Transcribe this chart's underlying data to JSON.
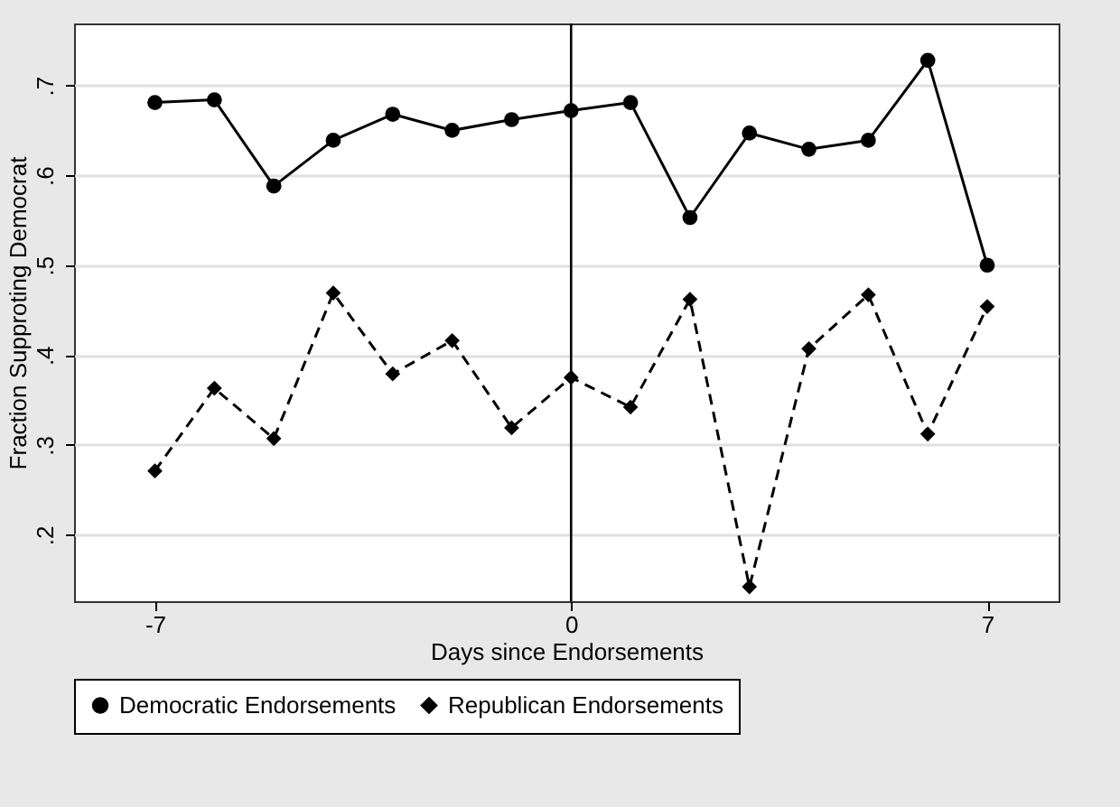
{
  "chart_data": {
    "type": "line",
    "xlabel": "Days since Endorsements",
    "ylabel": "Fraction Supproting Democrat",
    "x": [
      -7,
      -6,
      -5,
      -4,
      -3,
      -2,
      -1,
      0,
      1,
      2,
      3,
      4,
      5,
      6,
      7
    ],
    "xlim": [
      -8.36,
      8.2
    ],
    "xticks": [
      -7,
      0,
      7
    ],
    "ylim": [
      0.126,
      0.769
    ],
    "yticks": [
      {
        "value": 0.2,
        "label": ".2"
      },
      {
        "value": 0.3,
        "label": ".3"
      },
      {
        "value": 0.4,
        "label": ".4"
      },
      {
        "value": 0.5,
        "label": ".5"
      },
      {
        "value": 0.6,
        "label": ".6"
      },
      {
        "value": 0.7,
        "label": ".7"
      }
    ],
    "grid": "y",
    "legend": "bottom",
    "ref_lines": [
      {
        "axis": "x",
        "value": 0,
        "color": "#000000"
      }
    ],
    "series": [
      {
        "name": "Democratic Endorsements",
        "color": "#000000",
        "marker": "circle",
        "line_style": "solid",
        "values": [
          0.681,
          0.684,
          0.588,
          0.639,
          0.668,
          0.65,
          0.662,
          0.672,
          0.681,
          0.553,
          0.647,
          0.629,
          0.639,
          0.728,
          0.5
        ]
      },
      {
        "name": "Republican Endorsements",
        "color": "#000000",
        "marker": "diamond",
        "line_style": "dashed",
        "values": [
          0.271,
          0.363,
          0.307,
          0.469,
          0.379,
          0.416,
          0.319,
          0.375,
          0.342,
          0.462,
          0.142,
          0.407,
          0.467,
          0.312,
          0.454
        ]
      }
    ]
  }
}
